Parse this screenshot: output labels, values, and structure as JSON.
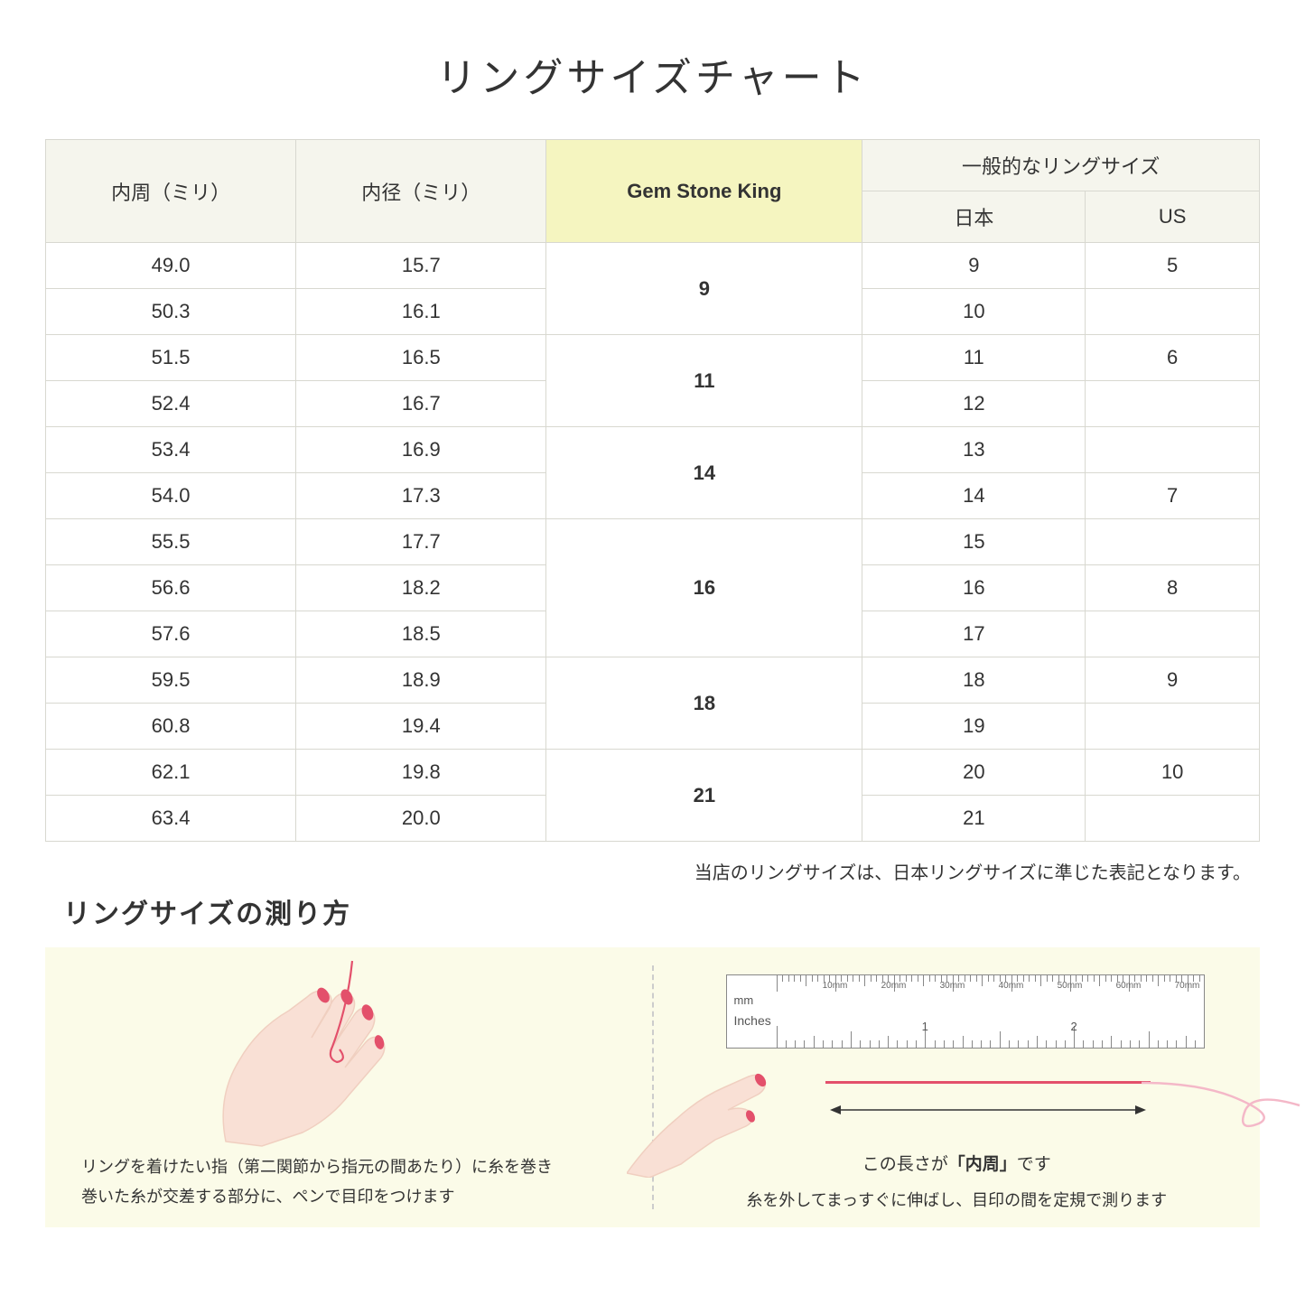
{
  "title": "リングサイズチャート",
  "headers": {
    "col1": "内周（ミリ）",
    "col2": "内径（ミリ）",
    "col3": "Gem Stone King",
    "col4_group": "一般的なリングサイズ",
    "col4a": "日本",
    "col4b": "US"
  },
  "groups": [
    {
      "gsk": "9",
      "rows": [
        {
          "c": "49.0",
          "d": "15.7",
          "jp": "9",
          "us": "5"
        },
        {
          "c": "50.3",
          "d": "16.1",
          "jp": "10",
          "us": ""
        }
      ]
    },
    {
      "gsk": "11",
      "rows": [
        {
          "c": "51.5",
          "d": "16.5",
          "jp": "11",
          "us": "6"
        },
        {
          "c": "52.4",
          "d": "16.7",
          "jp": "12",
          "us": ""
        }
      ]
    },
    {
      "gsk": "14",
      "rows": [
        {
          "c": "53.4",
          "d": "16.9",
          "jp": "13",
          "us": ""
        },
        {
          "c": "54.0",
          "d": "17.3",
          "jp": "14",
          "us": "7"
        }
      ]
    },
    {
      "gsk": "16",
      "rows": [
        {
          "c": "55.5",
          "d": "17.7",
          "jp": "15",
          "us": ""
        },
        {
          "c": "56.6",
          "d": "18.2",
          "jp": "16",
          "us": "8"
        },
        {
          "c": "57.6",
          "d": "18.5",
          "jp": "17",
          "us": ""
        }
      ]
    },
    {
      "gsk": "18",
      "rows": [
        {
          "c": "59.5",
          "d": "18.9",
          "jp": "18",
          "us": "9"
        },
        {
          "c": "60.8",
          "d": "19.4",
          "jp": "19",
          "us": ""
        }
      ]
    },
    {
      "gsk": "21",
      "rows": [
        {
          "c": "62.1",
          "d": "19.8",
          "jp": "20",
          "us": "10"
        },
        {
          "c": "63.4",
          "d": "20.0",
          "jp": "21",
          "us": ""
        }
      ]
    }
  ],
  "note": "当店のリングサイズは、日本リングサイズに準じた表記となります。",
  "subtitle": "リングサイズの測り方",
  "guide": {
    "left_caption_1": "リングを着けたい指（第二関節から指元の間あたり）に糸を巻き",
    "left_caption_2": "巻いた糸が交差する部分に、ペンで目印をつけます",
    "right_label_prefix": "この長さが",
    "right_label_bold": "「内周」",
    "right_label_suffix": "です",
    "right_caption": "糸を外してまっすぐに伸ばし、目印の間を定規で測ります",
    "ruler_mm": "mm",
    "ruler_in": "Inches",
    "mm_labels": [
      "10mm",
      "20mm",
      "30mm",
      "40mm",
      "50mm",
      "60mm",
      "70mm"
    ],
    "in_labels": [
      "1",
      "2"
    ]
  },
  "colors": {
    "header_bg": "#f5f5ed",
    "highlight_bg": "#f5f5c0",
    "border": "#d8d8d0",
    "guide_bg": "#fbfbe8",
    "skin": "#f9e0d5",
    "skin_dark": "#f0cfc0",
    "nail": "#e3506b",
    "thread": "#e3506b",
    "curl": "#f4b8c8"
  }
}
